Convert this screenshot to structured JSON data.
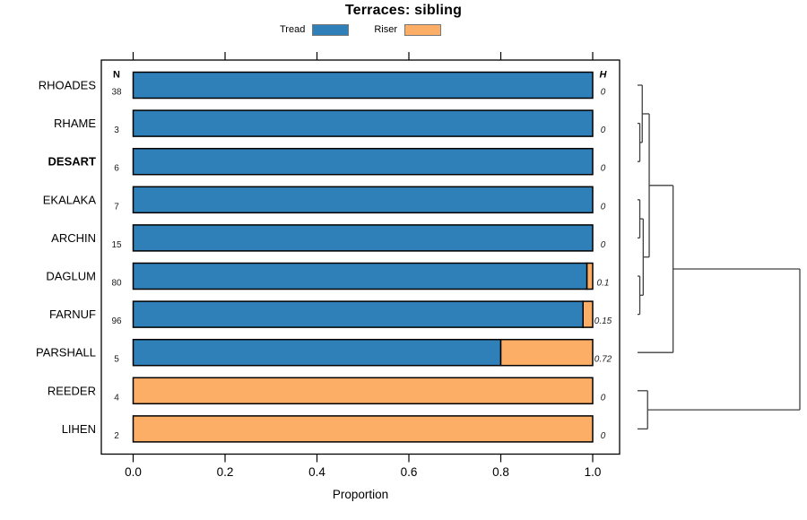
{
  "chart_data": {
    "type": "bar",
    "orientation": "horizontal",
    "stacked": true,
    "title": "Terraces: sibling",
    "xlabel": "Proportion",
    "xlim": [
      0,
      1
    ],
    "x_ticks": [
      "0.0",
      "0.2",
      "0.4",
      "0.6",
      "0.8",
      "1.0"
    ],
    "x_tick_values": [
      0,
      0.2,
      0.4,
      0.6,
      0.8,
      1.0
    ],
    "grid": false,
    "legend_position": "top",
    "legend": [
      {
        "label": "Tread",
        "color": "#2F80B8"
      },
      {
        "label": "Riser",
        "color": "#FCAD66"
      }
    ],
    "columns": {
      "left_header": "N",
      "right_header": "H"
    },
    "rows": [
      {
        "group": "RHOADES",
        "n": 38,
        "h": "0",
        "tread": 1.0,
        "riser": 0.0,
        "emphasis": false
      },
      {
        "group": "RHAME",
        "n": 3,
        "h": "0",
        "tread": 1.0,
        "riser": 0.0,
        "emphasis": false
      },
      {
        "group": "DESART",
        "n": 6,
        "h": "0",
        "tread": 1.0,
        "riser": 0.0,
        "emphasis": true
      },
      {
        "group": "EKALAKA",
        "n": 7,
        "h": "0",
        "tread": 1.0,
        "riser": 0.0,
        "emphasis": false
      },
      {
        "group": "ARCHIN",
        "n": 15,
        "h": "0",
        "tread": 1.0,
        "riser": 0.0,
        "emphasis": false
      },
      {
        "group": "DAGLUM",
        "n": 80,
        "h": "0.1",
        "tread": 0.9875,
        "riser": 0.0125,
        "emphasis": false
      },
      {
        "group": "FARNUF",
        "n": 96,
        "h": "0.15",
        "tread": 0.979,
        "riser": 0.021,
        "emphasis": false
      },
      {
        "group": "PARSHALL",
        "n": 5,
        "h": "0.72",
        "tread": 0.8,
        "riser": 0.2,
        "emphasis": false
      },
      {
        "group": "REEDER",
        "n": 4,
        "h": "0",
        "tread": 0.0,
        "riser": 1.0,
        "emphasis": false
      },
      {
        "group": "LIHEN",
        "n": 2,
        "h": "0",
        "tread": 0.0,
        "riser": 1.0,
        "emphasis": false
      }
    ],
    "dendrogram": {
      "merges": [
        {
          "id": "A",
          "children": [
            "RHAME",
            "DESART"
          ],
          "h": 0.014
        },
        {
          "id": "B",
          "children": [
            "RHOADES",
            "A"
          ],
          "h": 0.029
        },
        {
          "id": "D",
          "children": [
            "EKALAKA",
            "ARCHIN"
          ],
          "h": 0.014
        },
        {
          "id": "F",
          "children": [
            "DAGLUM",
            "FARNUF"
          ],
          "h": 0.014
        },
        {
          "id": "E",
          "children": [
            "D",
            "F"
          ],
          "h": 0.035
        },
        {
          "id": "G",
          "children": [
            "B",
            "E"
          ],
          "h": 0.072
        },
        {
          "id": "H",
          "children": [
            "G",
            "PARSHALL"
          ],
          "h": 0.219
        },
        {
          "id": "I",
          "children": [
            "REEDER",
            "LIHEN"
          ],
          "h": 0.062
        },
        {
          "id": "ROOT",
          "children": [
            "H",
            "I"
          ],
          "h": 1.0
        }
      ]
    },
    "style_colors": {
      "bar_border": "#000000",
      "axis": "#000000",
      "dendrogram_line": "#404040",
      "text": "#000000",
      "annotation_text": "#1a1a1a"
    }
  }
}
